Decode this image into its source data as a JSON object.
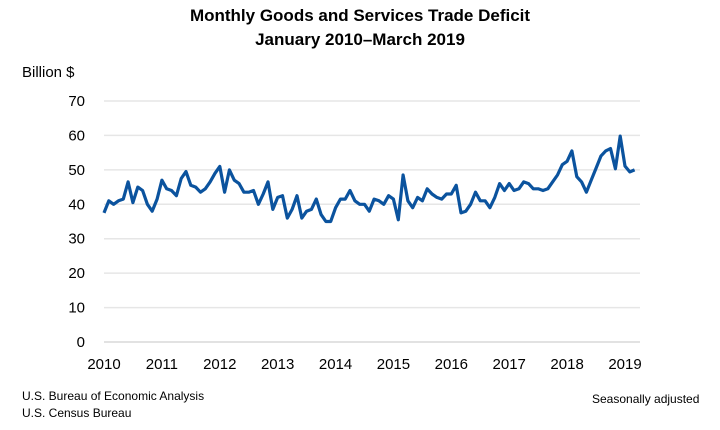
{
  "chart_data": {
    "type": "line",
    "title": "Monthly Goods and Services Trade Deficit",
    "subtitle": "January 2010–March 2019",
    "ylabel": "Billion $",
    "xlabel": "",
    "ylim": [
      0,
      70
    ],
    "yticks": [
      "0",
      "10",
      "20",
      "30",
      "40",
      "50",
      "60",
      "70"
    ],
    "xticks": [
      "2010",
      "2011",
      "2012",
      "2013",
      "2014",
      "2015",
      "2016",
      "2017",
      "2018",
      "2019"
    ],
    "grid": true,
    "line_color": "#0b539e",
    "x_start": "2010-01",
    "x_frequency": "monthly",
    "values": [
      37.5,
      41,
      40,
      41,
      41.5,
      46.5,
      40.5,
      45,
      44,
      40,
      38,
      41.5,
      47,
      44.5,
      44,
      42.5,
      47.5,
      49.5,
      45.5,
      45,
      43.5,
      44.5,
      46.5,
      49,
      51,
      43.5,
      50,
      47,
      46,
      43.5,
      43.5,
      44,
      40,
      43,
      46.5,
      38.5,
      42,
      42.5,
      36,
      38.5,
      42.5,
      36,
      38,
      38.5,
      41.5,
      37,
      35,
      35,
      39,
      41.5,
      41.5,
      44,
      41,
      40,
      40,
      38,
      41.5,
      41,
      40,
      42.5,
      41.5,
      35.5,
      48.5,
      41,
      39,
      42,
      41,
      44.5,
      43,
      42,
      41.5,
      43,
      43,
      45.5,
      37.5,
      38,
      40,
      43.5,
      41,
      41,
      39,
      42,
      46,
      44,
      46,
      44,
      44.5,
      46.5,
      46,
      44.5,
      44.5,
      44,
      44.5,
      46.5,
      48.5,
      51.5,
      52.5,
      55.5,
      48,
      46.5,
      43.5,
      47,
      50.5,
      54,
      55.5,
      56.2,
      50.3,
      59.8,
      51.1,
      49.4,
      50.0
    ]
  },
  "footnotes": {
    "source1": "U.S. Bureau of Economic Analysis",
    "source2": "U.S. Census Bureau",
    "note": "Seasonally adjusted"
  }
}
